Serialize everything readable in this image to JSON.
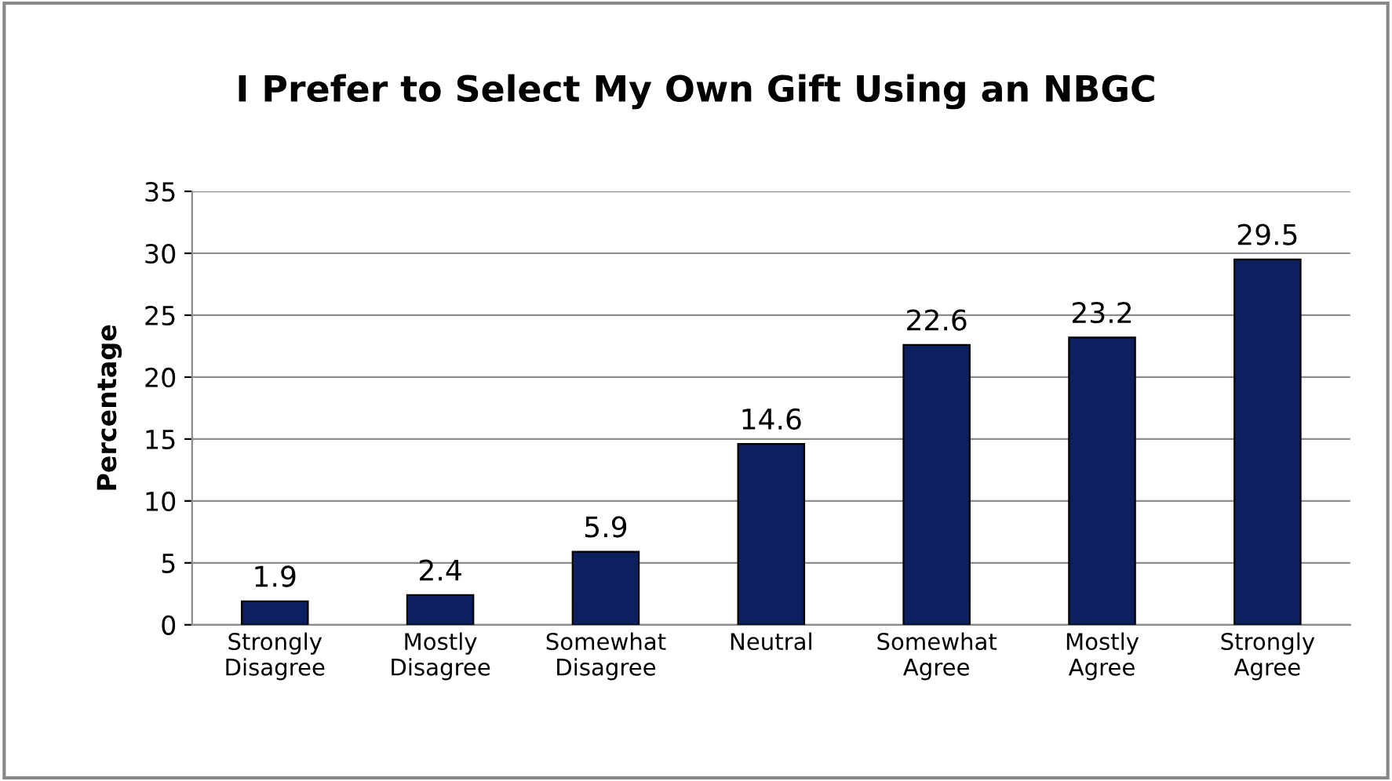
{
  "chart_data": {
    "type": "bar",
    "title": "I Prefer to Select My Own Gift Using an NBGC",
    "ylabel": "Percentage",
    "categories": [
      "Strongly\nDisagree",
      "Mostly\nDisagree",
      "Somewhat\nDisagree",
      "Neutral",
      "Somewhat\nAgree",
      "Mostly\nAgree",
      "Strongly\nAgree"
    ],
    "values": [
      1.9,
      2.4,
      5.9,
      14.6,
      22.6,
      23.2,
      29.5
    ],
    "color": "#0c1f5e",
    "ylim": [
      0,
      35
    ],
    "yticks": [
      0,
      5,
      10,
      15,
      20,
      25,
      30,
      35
    ],
    "grid": "y",
    "data_labels": true,
    "legend": false
  }
}
